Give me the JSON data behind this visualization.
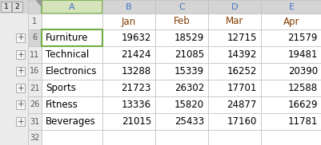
{
  "col_headers": [
    "A",
    "B",
    "C",
    "D",
    "E"
  ],
  "header_row": [
    "",
    "Jan",
    "Feb",
    "Mar",
    "Apr"
  ],
  "rows": [
    [
      "Furniture",
      19632,
      18529,
      12715,
      21579
    ],
    [
      "Technical",
      21424,
      21085,
      14392,
      19481
    ],
    [
      "Electronics",
      13288,
      15339,
      16252,
      20390
    ],
    [
      "Sports",
      21723,
      26302,
      17701,
      12588
    ],
    [
      "Fitness",
      13336,
      15820,
      24877,
      16629
    ],
    [
      "Beverages",
      21015,
      25433,
      17160,
      11781
    ]
  ],
  "row_labels_data": [
    "6",
    "11",
    "16",
    "21",
    "26",
    "31"
  ],
  "bg_color": "#ffffff",
  "header_bg": "#d4d4d4",
  "header_text_color": "#4472c4",
  "selected_col_bg": "#d6e4bc",
  "selected_cell_outline": "#70ad47",
  "row_num_bg": "#ebebeb",
  "row_num_text": "#595959",
  "cell_text": "#000000",
  "grid_color": "#bfbfbf",
  "level_btn_bg": "#e0e0e0",
  "level_btn_border": "#999999",
  "plus_btn_bg": "#f5f5f5",
  "plus_btn_border": "#aaaaaa",
  "left_panel_bg": "#ebebeb",
  "jan_feb_mar_apr_color": "#833c00"
}
